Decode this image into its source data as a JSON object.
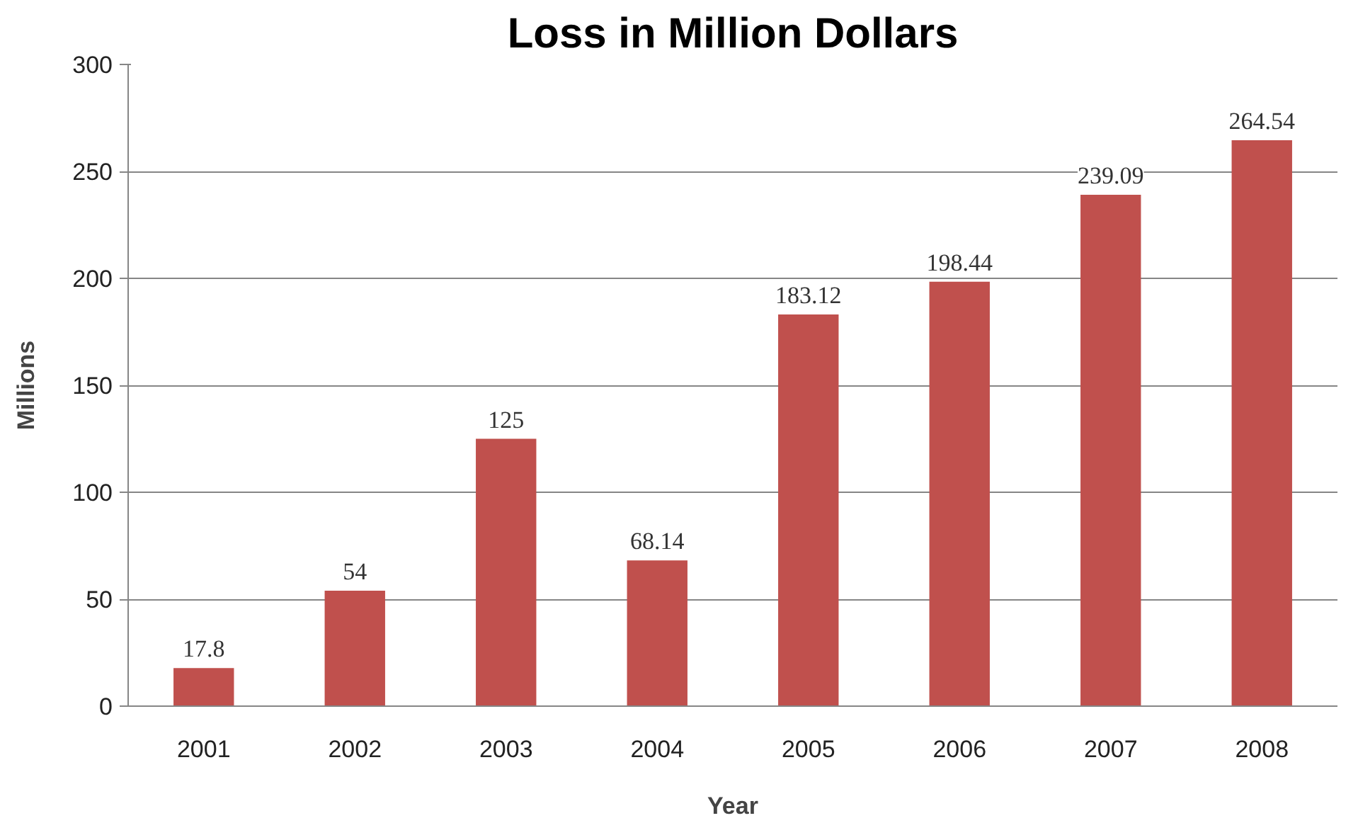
{
  "chart_data": {
    "type": "bar",
    "title": "Loss in Million Dollars",
    "xlabel": "Year",
    "ylabel": "Millions",
    "categories": [
      "2001",
      "2002",
      "2003",
      "2004",
      "2005",
      "2006",
      "2007",
      "2008"
    ],
    "values": [
      17.8,
      54,
      125,
      68.14,
      183.12,
      198.44,
      239.09,
      264.54
    ],
    "color": "#c0504d",
    "ylim": [
      0,
      300
    ],
    "yticks": [
      0,
      50,
      100,
      150,
      200,
      250,
      300
    ],
    "grid": "y",
    "data_labels": true
  }
}
